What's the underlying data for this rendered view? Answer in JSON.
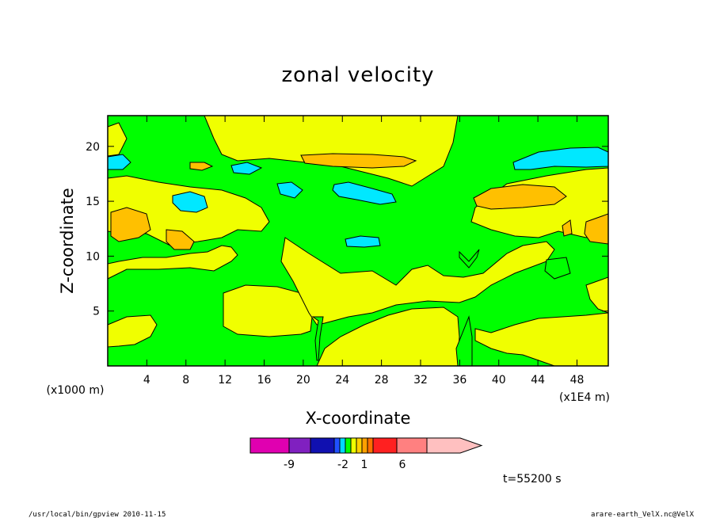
{
  "footer": {
    "left": "/usr/local/bin/gpview  2010-11-15",
    "right": "arare-earth_VelX.nc@VelX"
  },
  "time_label": "t=55200 s",
  "chart_data": {
    "type": "heatmap",
    "title": "zonal velocity",
    "xlabel": "X-coordinate",
    "ylabel": "Z-coordinate",
    "x_unit_left": "(x1000 m)",
    "x_unit_right": "(x1E4 m)",
    "xlim": [
      0,
      51.2
    ],
    "ylim": [
      0,
      22.8
    ],
    "x_ticks": [
      4,
      8,
      12,
      16,
      20,
      24,
      28,
      32,
      36,
      40,
      44,
      48
    ],
    "y_ticks": [
      5,
      10,
      15,
      20
    ],
    "colorbar": {
      "ticks": [
        "-9",
        "-2",
        "1",
        "6"
      ],
      "colors": [
        "#e000b0",
        "#8020c0",
        "#1010b0",
        "#2050ff",
        "#00d8ff",
        "#00ff00",
        "#f0ff00",
        "#ffd000",
        "#ffa000",
        "#ff7000",
        "#ff2020",
        "#ff8080",
        "#ffc0c0"
      ]
    },
    "regions": {
      "background": "#00ff00",
      "yellow": "#f0ff00",
      "orange": "#ffc000",
      "cyan": "#00e8ff"
    }
  }
}
